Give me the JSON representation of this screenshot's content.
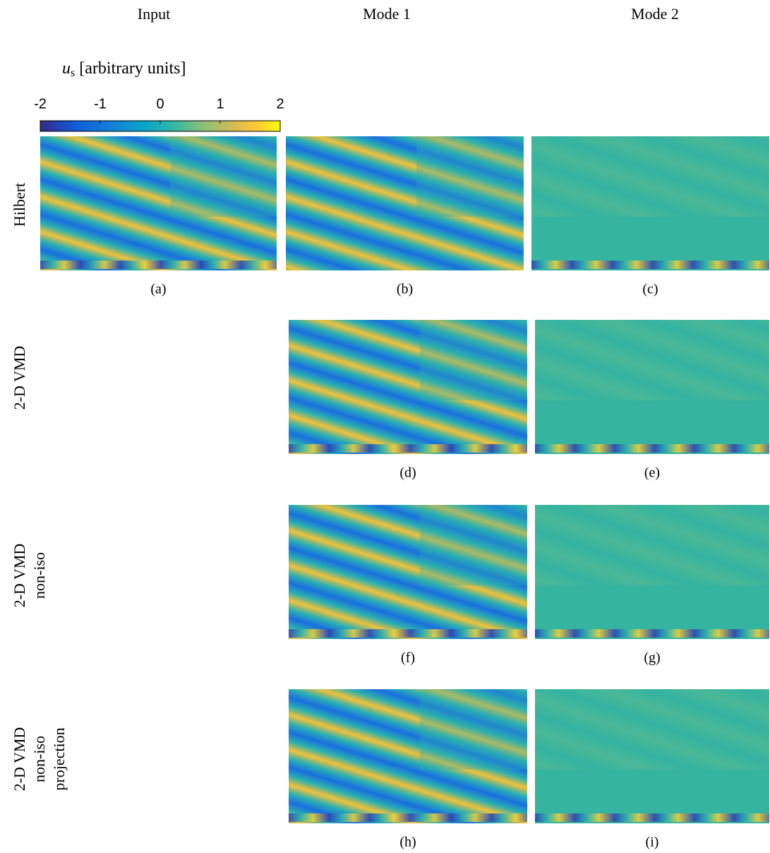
{
  "columns": [
    "Input",
    "Mode 1",
    "Mode 2"
  ],
  "colorbar": {
    "symbol": "u",
    "subscript": "s",
    "unit": "[arbitrary units]",
    "lim": [
      -2,
      2
    ],
    "ticks": [
      -2,
      -1,
      0,
      1,
      2
    ]
  },
  "rows": [
    {
      "label": [
        "Hilbert"
      ]
    },
    {
      "label": [
        "2-D VMD"
      ]
    },
    {
      "label": [
        "2-D VMD",
        "non-iso"
      ]
    },
    {
      "label": [
        "2-D VMD",
        "non-iso",
        "projection"
      ]
    }
  ],
  "panels": [
    "(a)",
    "(b)",
    "(c)",
    "(d)",
    "(e)",
    "(f)",
    "(g)",
    "(h)",
    "(i)"
  ]
}
